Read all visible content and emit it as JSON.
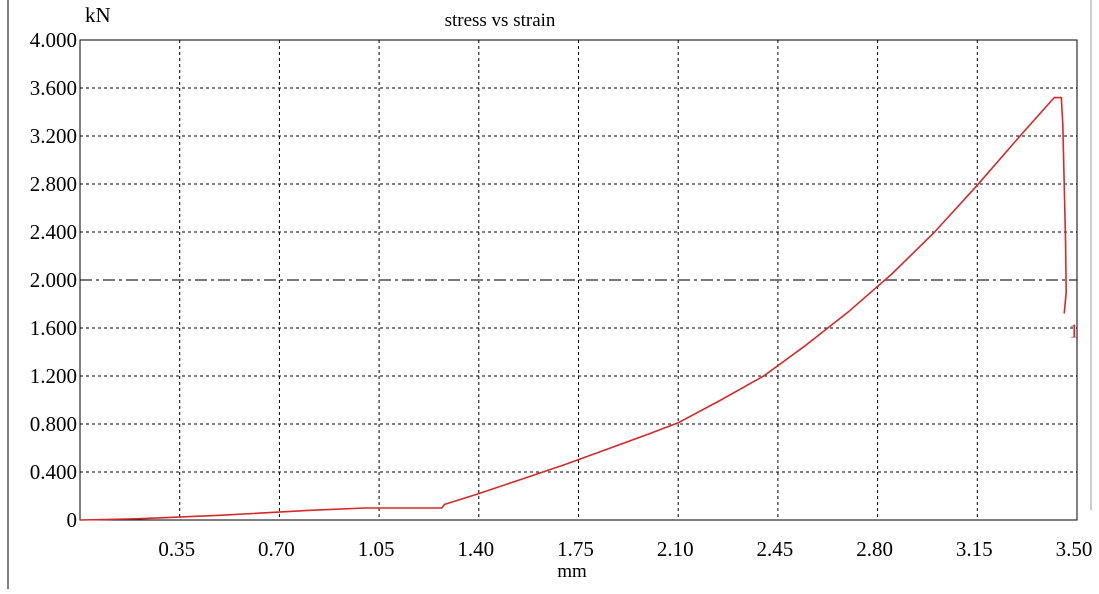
{
  "chart_data": {
    "type": "line",
    "title": "stress vs strain",
    "xlabel": "mm",
    "ylabel": "kN",
    "xlim": [
      0,
      3.5
    ],
    "ylim": [
      0,
      4.0
    ],
    "x_ticks": [
      "0.35",
      "0.70",
      "1.05",
      "1.40",
      "1.75",
      "2.10",
      "2.45",
      "2.80",
      "3.15",
      "3.50"
    ],
    "x_tick_values": [
      0.35,
      0.7,
      1.05,
      1.4,
      1.75,
      2.1,
      2.45,
      2.8,
      3.15,
      3.5
    ],
    "y_ticks": [
      "0",
      "0.400",
      "0.800",
      "1.200",
      "1.600",
      "2.000",
      "2.400",
      "2.800",
      "3.200",
      "3.600",
      "4.000"
    ],
    "y_tick_values": [
      0,
      0.4,
      0.8,
      1.2,
      1.6,
      2.0,
      2.4,
      2.8,
      3.2,
      3.6,
      4.0
    ],
    "grid": true,
    "reference_line_y": 2.0,
    "series": [
      {
        "color": "#d42a2a",
        "x": [
          0.0,
          0.2,
          0.5,
          0.8,
          1.0,
          1.27,
          1.28,
          1.4,
          1.55,
          1.7,
          1.85,
          2.0,
          2.1,
          2.25,
          2.4,
          2.55,
          2.7,
          2.85,
          3.0,
          3.15,
          3.3,
          3.42,
          3.445,
          3.45,
          3.455,
          3.46,
          3.462,
          3.455
        ],
        "y": [
          0.0,
          0.01,
          0.04,
          0.08,
          0.1,
          0.1,
          0.13,
          0.22,
          0.34,
          0.46,
          0.59,
          0.72,
          0.81,
          1.0,
          1.2,
          1.46,
          1.74,
          2.05,
          2.4,
          2.79,
          3.2,
          3.52,
          3.52,
          3.3,
          2.8,
          2.3,
          1.9,
          1.72
        ]
      }
    ],
    "annotations": [
      {
        "text": "1",
        "x": 3.5,
        "y": 1.58,
        "color": "#d42a2a"
      }
    ]
  }
}
